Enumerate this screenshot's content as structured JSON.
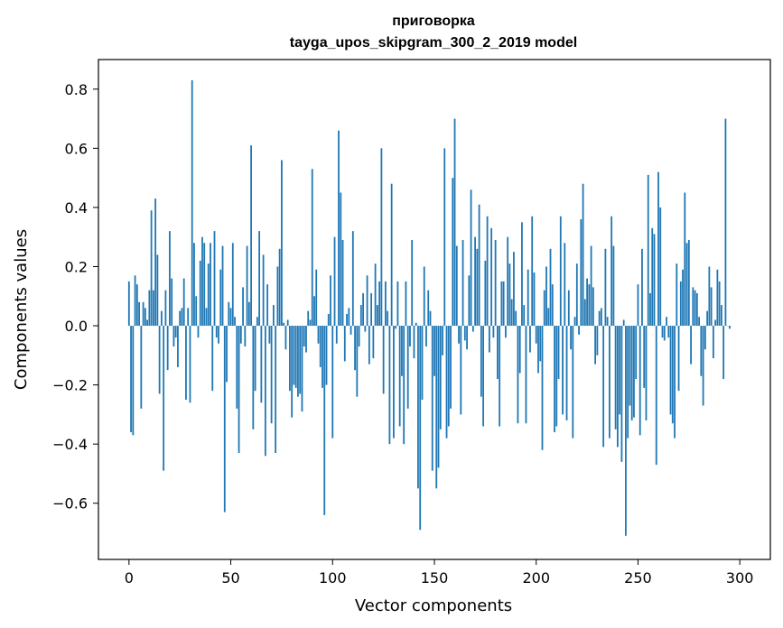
{
  "chart_data": {
    "type": "bar",
    "title_line1": "приговорка",
    "title_line2": "tayga_upos_skipgram_300_2_2019 model",
    "xlabel": "Vector components",
    "ylabel": "Components values",
    "xlim": [
      -15,
      315
    ],
    "ylim": [
      -0.79,
      0.9
    ],
    "x_ticks": [
      0,
      50,
      100,
      150,
      200,
      250,
      300
    ],
    "x_tick_labels": [
      "0",
      "50",
      "100",
      "150",
      "200",
      "250",
      "300"
    ],
    "y_ticks": [
      -0.6,
      -0.4,
      -0.2,
      0.0,
      0.2,
      0.4,
      0.6,
      0.8
    ],
    "y_tick_labels": [
      "−0.6",
      "−0.4",
      "−0.2",
      "0.0",
      "0.2",
      "0.4",
      "0.6",
      "0.8"
    ],
    "bar_color": "#1f77b4",
    "grid": false,
    "values": [
      0.15,
      -0.36,
      -0.37,
      0.17,
      0.14,
      0.08,
      -0.28,
      0.08,
      0.06,
      0.02,
      0.12,
      0.39,
      0.12,
      0.43,
      0.24,
      -0.23,
      0.05,
      -0.49,
      0.12,
      -0.15,
      0.32,
      0.16,
      -0.07,
      -0.04,
      -0.14,
      0.05,
      0.06,
      0.16,
      -0.25,
      0.06,
      -0.26,
      0.83,
      0.28,
      0.1,
      -0.04,
      0.22,
      0.3,
      0.28,
      0.06,
      0.21,
      0.28,
      -0.22,
      0.32,
      -0.04,
      -0.06,
      0.19,
      0.27,
      -0.63,
      -0.19,
      0.08,
      0.06,
      0.28,
      0.03,
      -0.28,
      -0.43,
      -0.06,
      0.13,
      -0.07,
      0.27,
      0.08,
      0.61,
      -0.35,
      -0.22,
      0.03,
      0.32,
      -0.26,
      0.24,
      -0.44,
      0.14,
      -0.06,
      -0.33,
      0.07,
      -0.43,
      0.2,
      0.26,
      0.56,
      0.01,
      -0.08,
      0.02,
      -0.22,
      -0.31,
      -0.2,
      -0.21,
      -0.24,
      -0.23,
      -0.29,
      -0.07,
      -0.09,
      0.05,
      0.02,
      0.53,
      0.1,
      0.19,
      -0.06,
      -0.14,
      -0.21,
      -0.64,
      -0.2,
      0.04,
      0.17,
      -0.38,
      0.3,
      -0.06,
      0.66,
      0.45,
      0.29,
      -0.12,
      0.04,
      0.06,
      -0.03,
      0.32,
      -0.15,
      -0.24,
      -0.07,
      0.07,
      0.11,
      -0.02,
      0.17,
      -0.13,
      0.11,
      -0.11,
      0.21,
      0.07,
      0.15,
      0.6,
      -0.23,
      0.15,
      0.05,
      -0.4,
      0.48,
      -0.38,
      -0.01,
      0.15,
      -0.34,
      -0.17,
      -0.4,
      0.15,
      -0.28,
      -0.07,
      0.29,
      -0.11,
      0.01,
      -0.55,
      -0.69,
      -0.25,
      0.2,
      -0.07,
      0.12,
      0.05,
      -0.49,
      -0.17,
      -0.55,
      -0.48,
      -0.35,
      -0.1,
      0.6,
      -0.38,
      -0.34,
      -0.28,
      0.5,
      0.7,
      0.27,
      -0.06,
      -0.3,
      0.29,
      -0.05,
      -0.08,
      0.17,
      0.46,
      -0.02,
      0.3,
      0.26,
      0.41,
      -0.24,
      -0.34,
      0.22,
      0.37,
      -0.09,
      0.33,
      -0.04,
      0.29,
      -0.18,
      -0.34,
      0.15,
      0.15,
      -0.04,
      0.3,
      0.21,
      0.09,
      0.25,
      0.05,
      -0.33,
      -0.16,
      0.35,
      0.07,
      -0.33,
      0.19,
      -0.09,
      0.37,
      0.18,
      -0.06,
      -0.16,
      -0.12,
      -0.42,
      0.12,
      0.2,
      0.06,
      0.26,
      0.14,
      -0.36,
      -0.34,
      -0.18,
      0.37,
      -0.3,
      0.28,
      -0.32,
      0.12,
      -0.08,
      -0.38,
      0.03,
      0.21,
      -0.03,
      0.36,
      0.48,
      0.09,
      0.16,
      0.14,
      0.27,
      0.13,
      -0.13,
      -0.1,
      0.05,
      0.06,
      -0.41,
      0.26,
      0.03,
      -0.38,
      0.37,
      0.27,
      -0.35,
      -0.41,
      -0.3,
      -0.46,
      0.02,
      -0.71,
      -0.38,
      -0.27,
      -0.32,
      -0.31,
      -0.18,
      0.14,
      -0.37,
      0.26,
      -0.21,
      -0.32,
      0.51,
      0.11,
      0.33,
      0.31,
      -0.47,
      0.52,
      0.4,
      -0.04,
      -0.05,
      0.03,
      -0.04,
      -0.3,
      -0.33,
      -0.38,
      0.21,
      -0.22,
      0.15,
      0.19,
      0.45,
      0.28,
      0.29,
      -0.13,
      0.13,
      0.12,
      0.11,
      0.03,
      -0.17,
      -0.27,
      -0.08,
      0.05,
      0.2,
      0.13,
      -0.11,
      0.02,
      0.19,
      0.15,
      0.07,
      -0.18,
      0.7,
      0.0,
      -0.01
    ]
  }
}
